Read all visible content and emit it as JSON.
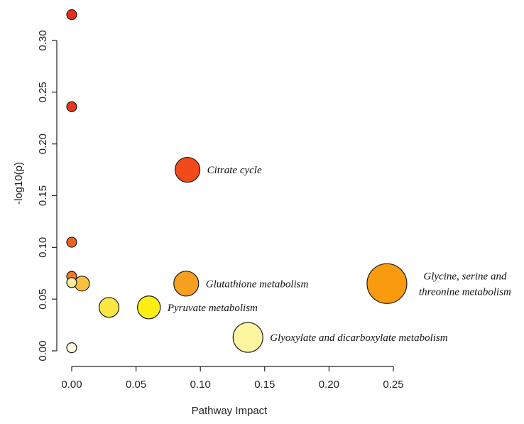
{
  "chart_data": {
    "type": "scatter",
    "title": "",
    "xlabel": "Pathway Impact",
    "ylabel": "-log10(p)",
    "xlim": [
      -0.005,
      0.255
    ],
    "ylim": [
      -0.01,
      0.33
    ],
    "xticks": [
      0.0,
      0.05,
      0.1,
      0.15,
      0.2,
      0.25
    ],
    "xtick_labels": [
      "0.00",
      "0.05",
      "0.10",
      "0.15",
      "0.20",
      "0.25"
    ],
    "yticks": [
      0.0,
      0.05,
      0.1,
      0.15,
      0.2,
      0.25,
      0.3
    ],
    "ytick_labels": [
      "0.00",
      "0.05",
      "0.10",
      "0.15",
      "0.20",
      "0.25",
      "0.30"
    ],
    "grid": false,
    "legend": "none",
    "points": [
      {
        "x": 0.0,
        "y": 0.325,
        "size": 1,
        "color": "#e8301a",
        "label": ""
      },
      {
        "x": 0.0,
        "y": 0.236,
        "size": 1,
        "color": "#e8351c",
        "label": ""
      },
      {
        "x": 0.09,
        "y": 0.175,
        "size": 2.5,
        "color": "#f24a1a",
        "label": "Citrate cycle"
      },
      {
        "x": 0.0,
        "y": 0.105,
        "size": 1,
        "color": "#ef6320",
        "label": ""
      },
      {
        "x": 0.0,
        "y": 0.072,
        "size": 1,
        "color": "#f07a22",
        "label": ""
      },
      {
        "x": 0.0,
        "y": 0.066,
        "size": 1,
        "color": "#fbed9a",
        "label": ""
      },
      {
        "x": 0.008,
        "y": 0.065,
        "size": 1.5,
        "color": "#f9c040",
        "label": ""
      },
      {
        "x": 0.089,
        "y": 0.065,
        "size": 2.5,
        "color": "#f7a020",
        "label": "Glutathione metabolism"
      },
      {
        "x": 0.245,
        "y": 0.065,
        "size": 4.0,
        "color": "#fa9a0e",
        "label": "Glycine, serine and threonine metabolism"
      },
      {
        "x": 0.029,
        "y": 0.042,
        "size": 2.0,
        "color": "#fbe642",
        "label": ""
      },
      {
        "x": 0.06,
        "y": 0.042,
        "size": 2.3,
        "color": "#ffee14",
        "label": "Pyruvate metabolism"
      },
      {
        "x": 0.137,
        "y": 0.013,
        "size": 3.0,
        "color": "#fdf5a0",
        "label": "Glyoxylate and dicarboxylate metabolism"
      },
      {
        "x": 0.0,
        "y": 0.003,
        "size": 1,
        "color": "#fefcdc",
        "label": ""
      }
    ]
  }
}
